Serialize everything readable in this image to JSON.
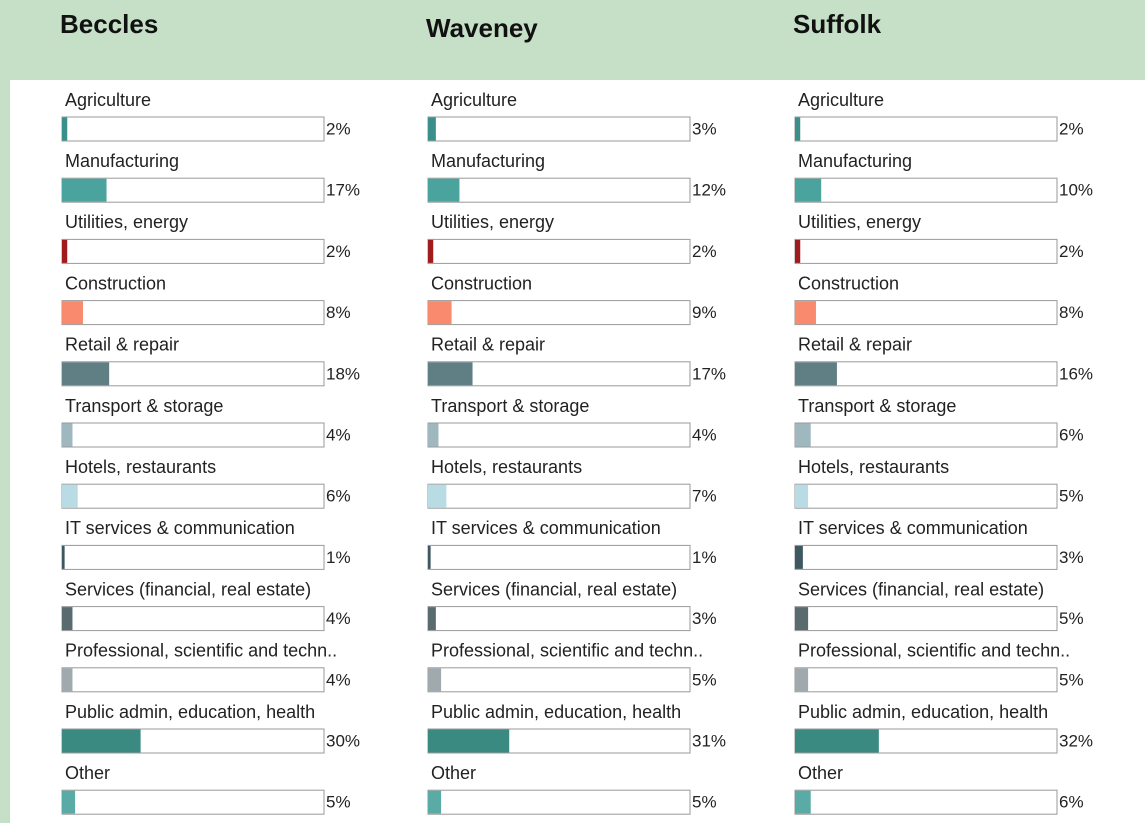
{
  "chart_data": [
    {
      "type": "bar",
      "title": "Beccles",
      "categories": [
        "Agriculture",
        "Manufacturing",
        "Utilities, energy",
        "Construction",
        "Retail & repair",
        "Transport & storage",
        "Hotels, restaurants",
        "IT services & communication",
        "Services (financial, real estate)",
        "Professional, scientific and techn..",
        "Public admin, education, health",
        "Other"
      ],
      "values": [
        2,
        17,
        2,
        8,
        18,
        4,
        6,
        1,
        4,
        4,
        30,
        5
      ],
      "value_labels": [
        "2%",
        "17%",
        "2%",
        "8%",
        "18%",
        "4%",
        "6%",
        "1%",
        "4%",
        "4%",
        "30%",
        "5%"
      ],
      "colors": [
        "#3a8f8a",
        "#4aa39c",
        "#a01c1c",
        "#f98a6e",
        "#5f7f85",
        "#9fb8c0",
        "#b9dbe3",
        "#3e5760",
        "#5a6b70",
        "#a0a9ad",
        "#3a8a82",
        "#5aaba6"
      ],
      "xlim": [
        0,
        100
      ]
    },
    {
      "type": "bar",
      "title": "Waveney",
      "categories": [
        "Agriculture",
        "Manufacturing",
        "Utilities, energy",
        "Construction",
        "Retail & repair",
        "Transport & storage",
        "Hotels, restaurants",
        "IT services & communication",
        "Services (financial, real estate)",
        "Professional, scientific and techn..",
        "Public admin, education, health",
        "Other"
      ],
      "values": [
        3,
        12,
        2,
        9,
        17,
        4,
        7,
        1,
        3,
        5,
        31,
        5
      ],
      "value_labels": [
        "3%",
        "12%",
        "2%",
        "9%",
        "17%",
        "4%",
        "7%",
        "1%",
        "3%",
        "5%",
        "31%",
        "5%"
      ],
      "colors": [
        "#3a8f8a",
        "#4aa39c",
        "#a01c1c",
        "#f98a6e",
        "#5f7f85",
        "#9fb8c0",
        "#b9dbe3",
        "#3e5760",
        "#5a6b70",
        "#a0a9ad",
        "#3a8a82",
        "#5aaba6"
      ],
      "xlim": [
        0,
        100
      ]
    },
    {
      "type": "bar",
      "title": "Suffolk",
      "categories": [
        "Agriculture",
        "Manufacturing",
        "Utilities, energy",
        "Construction",
        "Retail & repair",
        "Transport & storage",
        "Hotels, restaurants",
        "IT services & communication",
        "Services (financial, real estate)",
        "Professional, scientific and techn..",
        "Public admin, education, health",
        "Other"
      ],
      "values": [
        2,
        10,
        2,
        8,
        16,
        6,
        5,
        3,
        5,
        5,
        32,
        6
      ],
      "value_labels": [
        "2%",
        "10%",
        "2%",
        "8%",
        "16%",
        "6%",
        "5%",
        "3%",
        "5%",
        "5%",
        "32%",
        "6%"
      ],
      "colors": [
        "#3a8f8a",
        "#4aa39c",
        "#a01c1c",
        "#f98a6e",
        "#5f7f85",
        "#9fb8c0",
        "#b9dbe3",
        "#3e5760",
        "#5a6b70",
        "#a0a9ad",
        "#3a8a82",
        "#5aaba6"
      ],
      "xlim": [
        0,
        100
      ]
    }
  ]
}
